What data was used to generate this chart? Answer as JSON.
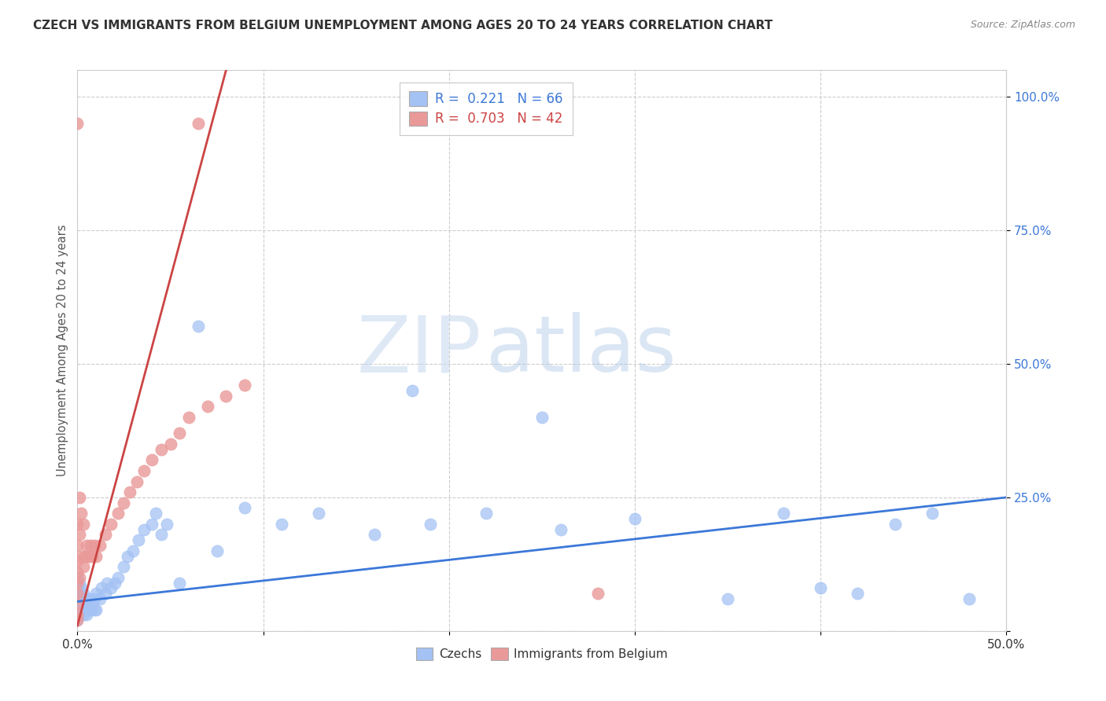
{
  "title": "CZECH VS IMMIGRANTS FROM BELGIUM UNEMPLOYMENT AMONG AGES 20 TO 24 YEARS CORRELATION CHART",
  "source": "Source: ZipAtlas.com",
  "ylabel": "Unemployment Among Ages 20 to 24 years",
  "xlim": [
    0.0,
    0.5
  ],
  "ylim": [
    0.0,
    1.05
  ],
  "blue_color": "#a4c2f4",
  "pink_color": "#ea9999",
  "blue_line_color": "#3c78d8",
  "pink_line_color": "#cc4444",
  "watermark_zip": "ZIP",
  "watermark_atlas": "atlas",
  "legend1_text": "R =  0.221   N = 66",
  "legend2_text": "R =  0.703   N = 42",
  "bottom_legend1": "Czechs",
  "bottom_legend2": "Immigrants from Belgium",
  "czech_x": [
    0.0,
    0.0,
    0.0,
    0.0,
    0.0,
    0.0,
    0.0,
    0.0,
    0.001,
    0.001,
    0.001,
    0.001,
    0.002,
    0.002,
    0.002,
    0.003,
    0.003,
    0.003,
    0.004,
    0.004,
    0.005,
    0.005,
    0.006,
    0.006,
    0.007,
    0.008,
    0.009,
    0.009,
    0.01,
    0.01,
    0.012,
    0.013,
    0.015,
    0.016,
    0.018,
    0.02,
    0.022,
    0.025,
    0.027,
    0.03,
    0.033,
    0.036,
    0.04,
    0.042,
    0.045,
    0.048,
    0.055,
    0.065,
    0.075,
    0.09,
    0.11,
    0.13,
    0.16,
    0.19,
    0.22,
    0.26,
    0.3,
    0.35,
    0.4,
    0.42,
    0.44,
    0.46,
    0.48,
    0.18,
    0.25,
    0.38
  ],
  "czech_y": [
    0.02,
    0.03,
    0.04,
    0.05,
    0.06,
    0.07,
    0.08,
    0.1,
    0.03,
    0.05,
    0.07,
    0.09,
    0.04,
    0.06,
    0.08,
    0.03,
    0.05,
    0.07,
    0.04,
    0.06,
    0.03,
    0.05,
    0.04,
    0.06,
    0.04,
    0.05,
    0.04,
    0.06,
    0.04,
    0.07,
    0.06,
    0.08,
    0.07,
    0.09,
    0.08,
    0.09,
    0.1,
    0.12,
    0.14,
    0.15,
    0.17,
    0.19,
    0.2,
    0.22,
    0.18,
    0.2,
    0.09,
    0.57,
    0.15,
    0.23,
    0.2,
    0.22,
    0.18,
    0.2,
    0.22,
    0.19,
    0.21,
    0.06,
    0.08,
    0.07,
    0.2,
    0.22,
    0.06,
    0.45,
    0.4,
    0.22
  ],
  "belgium_x": [
    0.0,
    0.0,
    0.0,
    0.0,
    0.0,
    0.0,
    0.0,
    0.0,
    0.0,
    0.0,
    0.001,
    0.001,
    0.001,
    0.002,
    0.002,
    0.003,
    0.003,
    0.004,
    0.005,
    0.006,
    0.007,
    0.008,
    0.009,
    0.01,
    0.012,
    0.015,
    0.018,
    0.022,
    0.025,
    0.028,
    0.032,
    0.036,
    0.04,
    0.045,
    0.05,
    0.055,
    0.06,
    0.065,
    0.07,
    0.08,
    0.09,
    0.28
  ],
  "belgium_y": [
    0.02,
    0.03,
    0.05,
    0.07,
    0.09,
    0.11,
    0.13,
    0.16,
    0.2,
    0.95,
    0.1,
    0.18,
    0.25,
    0.14,
    0.22,
    0.12,
    0.2,
    0.14,
    0.16,
    0.14,
    0.16,
    0.14,
    0.16,
    0.14,
    0.16,
    0.18,
    0.2,
    0.22,
    0.24,
    0.26,
    0.28,
    0.3,
    0.32,
    0.34,
    0.35,
    0.37,
    0.4,
    0.95,
    0.42,
    0.44,
    0.46,
    0.07
  ],
  "czech_line_x0": 0.0,
  "czech_line_x1": 0.5,
  "czech_line_y0": 0.055,
  "czech_line_y1": 0.25,
  "belgium_line_x0": 0.0,
  "belgium_line_x1": 0.08,
  "belgium_line_y0": 0.01,
  "belgium_line_y1": 1.05
}
